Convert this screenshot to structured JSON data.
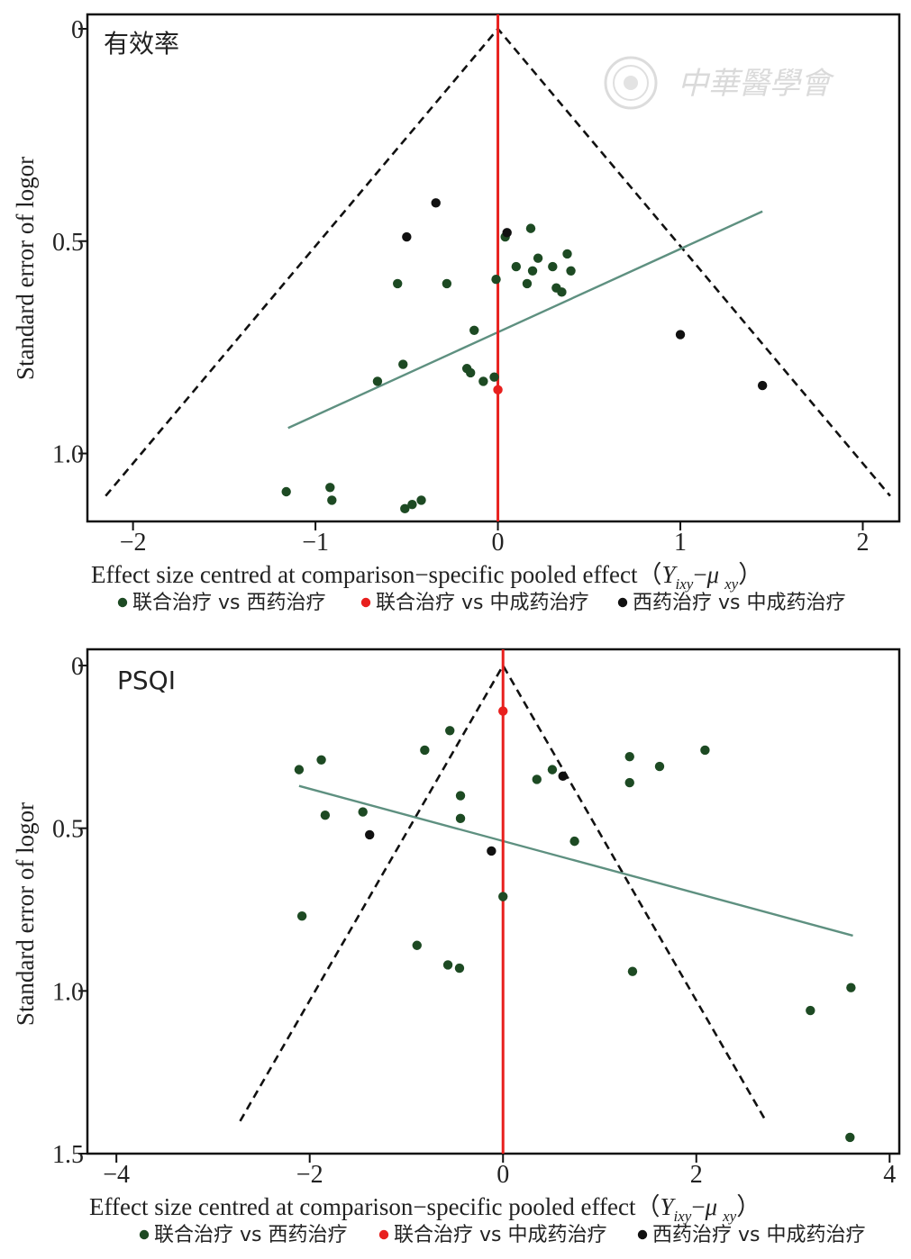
{
  "chart_data": [
    {
      "type": "scatter",
      "title": "有效率",
      "xlabel": "Effect size centred at comparison−specific pooled effect（",
      "xlabel_math_y": "Y",
      "xlabel_math_y_sub": "ixy",
      "xlabel_math_op": "−",
      "xlabel_math_mu": "μ",
      "xlabel_math_mu_sub": "xy",
      "xlabel_close": "）",
      "ylabel": "Standard error of logor",
      "xlim": [
        -2.25,
        2.2
      ],
      "ylim": [
        0,
        1.16
      ],
      "y_inverted": true,
      "x_ticks": [
        -2,
        -1,
        0,
        1,
        2
      ],
      "x_tick_labels": [
        "−2",
        "−1",
        "0",
        "1",
        "2"
      ],
      "y_ticks": [
        0,
        0.5,
        1.0
      ],
      "y_tick_labels": [
        "0",
        "0.5",
        "1.0"
      ],
      "funnel": {
        "apex": [
          0,
          0
        ],
        "left_bottom": [
          -2.15,
          1.1
        ],
        "right_bottom": [
          2.15,
          1.1
        ],
        "color": "#111111"
      },
      "reference_line": {
        "x": 0,
        "color": "#e8201e"
      },
      "regression_line": {
        "points": [
          [
            -1.15,
            0.94
          ],
          [
            1.45,
            0.43
          ]
        ],
        "color": "#5e9080"
      },
      "series": [
        {
          "name": "联合治疗 vs 西药治疗",
          "color": "#1d4a23",
          "points": [
            [
              0.18,
              0.47
            ],
            [
              0.04,
              0.49
            ],
            [
              0.38,
              0.53
            ],
            [
              0.3,
              0.56
            ],
            [
              0.22,
              0.54
            ],
            [
              0.1,
              0.56
            ],
            [
              0.19,
              0.57
            ],
            [
              0.4,
              0.57
            ],
            [
              -0.01,
              0.59
            ],
            [
              -0.55,
              0.6
            ],
            [
              -0.28,
              0.6
            ],
            [
              0.16,
              0.6
            ],
            [
              0.32,
              0.61
            ],
            [
              0.35,
              0.62
            ],
            [
              -0.13,
              0.71
            ],
            [
              -0.52,
              0.79
            ],
            [
              -0.17,
              0.8
            ],
            [
              -0.15,
              0.81
            ],
            [
              -0.02,
              0.82
            ],
            [
              -0.66,
              0.83
            ],
            [
              -0.08,
              0.83
            ],
            [
              -1.16,
              1.09
            ],
            [
              -0.92,
              1.08
            ],
            [
              -0.91,
              1.11
            ],
            [
              -0.51,
              1.13
            ],
            [
              -0.47,
              1.12
            ],
            [
              -0.42,
              1.11
            ]
          ]
        },
        {
          "name": "联合治疗 vs 中成药治疗",
          "color": "#e8201e",
          "points": [
            [
              0.0,
              0.85
            ]
          ]
        },
        {
          "name": "西药治疗 vs 中成药治疗",
          "color": "#111111",
          "points": [
            [
              -0.34,
              0.41
            ],
            [
              0.05,
              0.48
            ],
            [
              -0.5,
              0.49
            ],
            [
              1.0,
              0.72
            ],
            [
              1.45,
              0.84
            ]
          ]
        }
      ],
      "legend_position": "bottom"
    },
    {
      "type": "scatter",
      "title": "PSQI",
      "xlabel": "Effect size centred at comparison−specific pooled effect（",
      "xlabel_math_y": "Y",
      "xlabel_math_y_sub": "ixy",
      "xlabel_math_op": "−",
      "xlabel_math_mu": "μ",
      "xlabel_math_mu_sub": "xy",
      "xlabel_close": "）",
      "ylabel": "Standard error of logor",
      "xlim": [
        -4.3,
        4.1
      ],
      "ylim": [
        0,
        1.5
      ],
      "y_inverted": true,
      "x_ticks": [
        -4,
        -2,
        0,
        2,
        4
      ],
      "x_tick_labels": [
        "−4",
        "−2",
        "0",
        "2",
        "4"
      ],
      "y_ticks": [
        0,
        0.5,
        1.0,
        1.5
      ],
      "y_tick_labels": [
        "0",
        "0.5",
        "1.0",
        "1.5"
      ],
      "funnel": {
        "apex": [
          0,
          0
        ],
        "left_bottom": [
          -2.72,
          1.4
        ],
        "right_bottom": [
          2.72,
          1.4
        ],
        "color": "#111111"
      },
      "reference_line": {
        "x": 0,
        "color": "#e8201e"
      },
      "regression_line": {
        "points": [
          [
            -2.11,
            0.37
          ],
          [
            3.62,
            0.83
          ]
        ],
        "color": "#5e9080"
      },
      "series": [
        {
          "name": "联合治疗 vs 西药治疗",
          "color": "#1d4a23",
          "points": [
            [
              -0.55,
              0.2
            ],
            [
              -0.81,
              0.26
            ],
            [
              -1.88,
              0.29
            ],
            [
              -2.11,
              0.32
            ],
            [
              1.31,
              0.28
            ],
            [
              2.09,
              0.26
            ],
            [
              1.62,
              0.31
            ],
            [
              0.51,
              0.32
            ],
            [
              0.35,
              0.35
            ],
            [
              1.31,
              0.36
            ],
            [
              -0.44,
              0.4
            ],
            [
              -1.45,
              0.45
            ],
            [
              -1.84,
              0.46
            ],
            [
              -0.44,
              0.47
            ],
            [
              0.74,
              0.54
            ],
            [
              0.0,
              0.71
            ],
            [
              -2.08,
              0.77
            ],
            [
              -0.89,
              0.86
            ],
            [
              -0.57,
              0.92
            ],
            [
              -0.45,
              0.93
            ],
            [
              1.34,
              0.94
            ],
            [
              3.6,
              0.99
            ],
            [
              3.18,
              1.06
            ],
            [
              3.59,
              1.45
            ]
          ]
        },
        {
          "name": "联合治疗 vs 中成药治疗",
          "color": "#e8201e",
          "points": [
            [
              0.0,
              0.14
            ]
          ]
        },
        {
          "name": "西药治疗 vs 中成药治疗",
          "color": "#111111",
          "points": [
            [
              0.62,
              0.34
            ],
            [
              -1.38,
              0.52
            ],
            [
              -0.12,
              0.57
            ]
          ]
        }
      ],
      "legend_position": "bottom"
    }
  ],
  "watermark": {
    "text": "中華醫學會",
    "icon": "seal-icon"
  }
}
